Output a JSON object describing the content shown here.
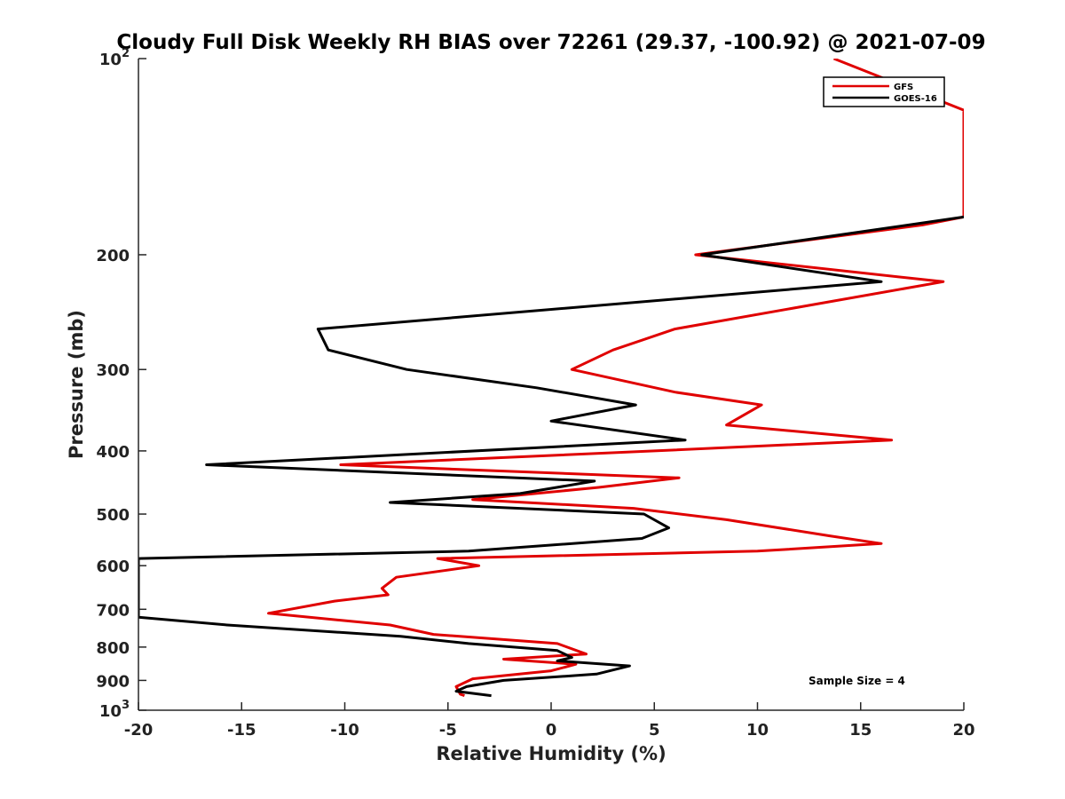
{
  "chart_data": {
    "type": "line",
    "title": "Cloudy Full Disk Weekly RH BIAS over 72261 (29.37, -100.92) @ 2021-07-09",
    "xlabel": "Relative Humidity (%)",
    "ylabel": "Pressure (mb)",
    "xlim": [
      -20,
      20
    ],
    "ylim": [
      100,
      1000
    ],
    "y_scale": "log",
    "y_reversed": true,
    "grid": false,
    "legend_position": "top-right",
    "x_ticks": [
      "-20",
      "-15",
      "-10",
      "-5",
      "0",
      "5",
      "10",
      "15",
      "20"
    ],
    "y_ticks": [
      {
        "value": 100,
        "base": "10",
        "exp": "2"
      },
      {
        "value": 200,
        "label": "200"
      },
      {
        "value": 300,
        "label": "300"
      },
      {
        "value": 400,
        "label": "400"
      },
      {
        "value": 500,
        "label": "500"
      },
      {
        "value": 600,
        "label": "600"
      },
      {
        "value": 700,
        "label": "700"
      },
      {
        "value": 800,
        "label": "800"
      },
      {
        "value": 900,
        "label": "900"
      },
      {
        "value": 1000,
        "base": "10",
        "exp": "3"
      }
    ],
    "annotation": "Sample Size = 4",
    "series": [
      {
        "name": "GFS",
        "color": "#e00000",
        "points": [
          [
            13.7,
            100
          ],
          [
            17,
            110
          ],
          [
            20,
            120
          ],
          [
            20,
            175
          ],
          [
            18,
            180
          ],
          [
            7,
            200
          ],
          [
            19,
            220
          ],
          [
            6,
            260
          ],
          [
            3,
            280
          ],
          [
            1,
            300
          ],
          [
            6,
            325
          ],
          [
            10.2,
            340
          ],
          [
            8.5,
            365
          ],
          [
            16.5,
            385
          ],
          [
            5,
            400
          ],
          [
            -10.2,
            420
          ],
          [
            6.2,
            440
          ],
          [
            2.3,
            455
          ],
          [
            -3.8,
            475
          ],
          [
            4,
            490
          ],
          [
            8.5,
            510
          ],
          [
            13.5,
            540
          ],
          [
            16,
            555
          ],
          [
            10,
            570
          ],
          [
            -5.5,
            585
          ],
          [
            -3.5,
            600
          ],
          [
            -7.5,
            625
          ],
          [
            -8.2,
            650
          ],
          [
            -7.9,
            665
          ],
          [
            -10.5,
            680
          ],
          [
            -13.7,
            710
          ],
          [
            -7.8,
            740
          ],
          [
            -5.7,
            765
          ],
          [
            0.3,
            790
          ],
          [
            1.7,
            820
          ],
          [
            -2.3,
            835
          ],
          [
            1.2,
            850
          ],
          [
            0,
            870
          ],
          [
            -3.8,
            895
          ],
          [
            -4.6,
            920
          ],
          [
            -4.4,
            945
          ],
          [
            -4.2,
            950
          ]
        ]
      },
      {
        "name": "GOES-16",
        "color": "#000000",
        "points": [
          [
            20,
            175
          ],
          [
            7.3,
            200
          ],
          [
            16,
            220
          ],
          [
            -11.3,
            260
          ],
          [
            -10.8,
            280
          ],
          [
            -7,
            300
          ],
          [
            -0.7,
            320
          ],
          [
            4.1,
            340
          ],
          [
            0,
            360
          ],
          [
            6.5,
            385
          ],
          [
            -16.7,
            420
          ],
          [
            2.1,
            445
          ],
          [
            -1.5,
            465
          ],
          [
            -7.8,
            480
          ],
          [
            4.5,
            500
          ],
          [
            5.7,
            525
          ],
          [
            4.4,
            545
          ],
          [
            -4,
            570
          ],
          [
            -20,
            585
          ],
          [
            -20,
            720
          ],
          [
            -15.7,
            740
          ],
          [
            -7.3,
            770
          ],
          [
            -4,
            790
          ],
          [
            0.3,
            810
          ],
          [
            1,
            830
          ],
          [
            0.3,
            840
          ],
          [
            3.8,
            855
          ],
          [
            2.2,
            880
          ],
          [
            -2.3,
            900
          ],
          [
            -4.1,
            920
          ],
          [
            -4.6,
            935
          ],
          [
            -2.9,
            950
          ]
        ]
      }
    ]
  }
}
